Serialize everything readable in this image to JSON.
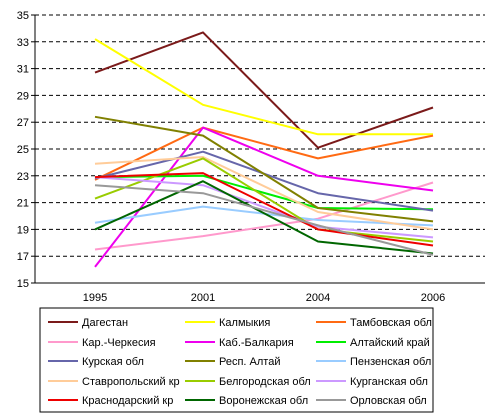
{
  "chart_data": {
    "type": "line",
    "title": "",
    "xlabel": "",
    "ylabel": "",
    "x": [
      "1995",
      "2001",
      "2004",
      "2006"
    ],
    "ylim": [
      15,
      35
    ],
    "yticks": [
      15,
      17,
      19,
      21,
      23,
      25,
      27,
      29,
      31,
      33,
      35
    ],
    "grid": "horizontal dashed",
    "legend_position": "bottom",
    "series": [
      {
        "name": "Дагестан",
        "color": "#7b1a1a",
        "values": [
          30.7,
          33.7,
          25.1,
          28.1
        ]
      },
      {
        "name": "Калмыкия",
        "color": "#ffff00",
        "values": [
          33.2,
          28.3,
          26.1,
          26.1
        ]
      },
      {
        "name": "Тамбовская обл",
        "color": "#ff6a13",
        "values": [
          22.7,
          26.6,
          24.3,
          26.0
        ]
      },
      {
        "name": "Кар.-Черкесия",
        "color": "#ff99cc",
        "values": [
          17.5,
          18.5,
          19.8,
          22.5
        ]
      },
      {
        "name": "Каб.-Балкария",
        "color": "#ee00ee",
        "values": [
          16.2,
          26.6,
          23.0,
          21.9
        ]
      },
      {
        "name": "Алтайский край",
        "color": "#00ee00",
        "values": [
          22.9,
          23.0,
          20.6,
          20.5
        ]
      },
      {
        "name": "Курская обл",
        "color": "#6666aa",
        "values": [
          22.8,
          24.8,
          21.7,
          20.4
        ]
      },
      {
        "name": "Респ. Алтай",
        "color": "#808000",
        "values": [
          27.4,
          26.0,
          20.6,
          19.6
        ]
      },
      {
        "name": "Пензенская обл",
        "color": "#99ccff",
        "values": [
          19.5,
          20.7,
          19.7,
          19.3
        ]
      },
      {
        "name": "Ставропольский кр",
        "color": "#ffcc99",
        "values": [
          23.9,
          24.4,
          20.3,
          19.0
        ]
      },
      {
        "name": "Белгородская обл",
        "color": "#99cc00",
        "values": [
          21.3,
          24.3,
          19.0,
          18.1
        ]
      },
      {
        "name": "Курганская обл",
        "color": "#cc99ff",
        "values": [
          22.9,
          22.3,
          19.2,
          18.4
        ]
      },
      {
        "name": "Краснодарский кр",
        "color": "#ee0000",
        "values": [
          22.9,
          23.2,
          19.0,
          17.8
        ]
      },
      {
        "name": "Воронежская обл",
        "color": "#006600",
        "values": [
          19.0,
          22.6,
          18.1,
          17.2
        ]
      },
      {
        "name": "Орловская обл",
        "color": "#999999",
        "values": [
          22.3,
          21.7,
          19.3,
          17.1
        ]
      }
    ]
  }
}
